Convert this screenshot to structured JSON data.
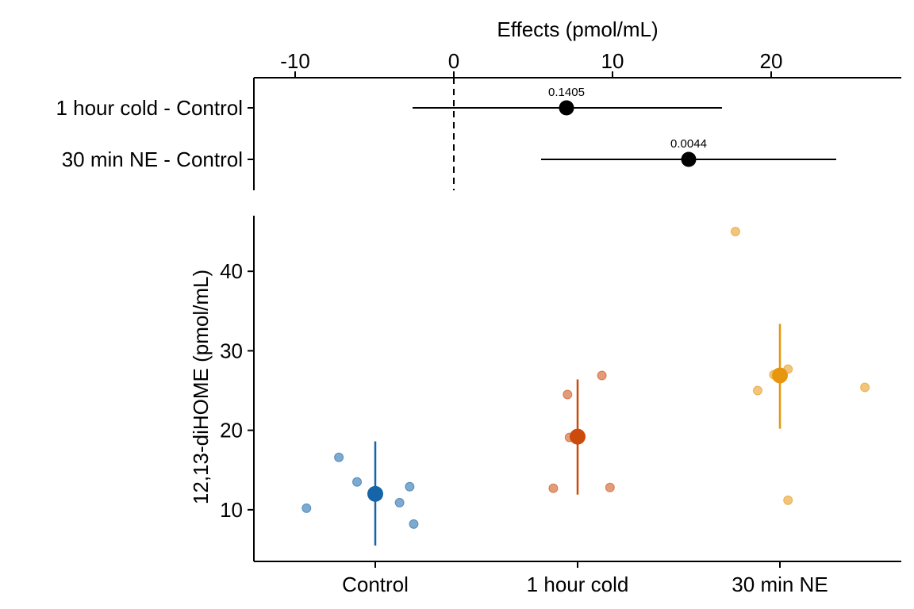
{
  "chart_data": [
    {
      "type": "scatter",
      "panel": "effects",
      "title": "",
      "xlabel": "Effects (pmol/mL)",
      "ylabel": "",
      "xlim": [
        -12.6,
        28.2
      ],
      "xticks": [
        -10,
        0,
        10,
        20
      ],
      "reference_line": 0,
      "rows": [
        {
          "label": "1 hour cold - Control",
          "estimate": 7.1,
          "ci_low": -2.6,
          "ci_high": 16.9,
          "p_label": "0.1405"
        },
        {
          "label": "30 min NE - Control",
          "estimate": 14.8,
          "ci_low": 5.5,
          "ci_high": 24.1,
          "p_label": "0.0044"
        }
      ]
    },
    {
      "type": "scatter",
      "panel": "groups",
      "title": "",
      "xlabel": "",
      "ylabel": "12,13-diHOME (pmol/mL)",
      "ylim": [
        3.5,
        47.0
      ],
      "yticks": [
        10,
        20,
        30,
        40
      ],
      "categories": [
        "Control",
        "1 hour cold",
        "30 min NE"
      ],
      "groups": [
        {
          "category": "Control",
          "color": "#1565a8",
          "mean": 12.0,
          "ci_low": 5.5,
          "ci_high": 18.6,
          "points": [
            {
              "offset": -0.34,
              "y": 10.2
            },
            {
              "offset": -0.18,
              "y": 16.6
            },
            {
              "offset": -0.09,
              "y": 13.5
            },
            {
              "offset": 0.12,
              "y": 10.9
            },
            {
              "offset": 0.17,
              "y": 12.9
            },
            {
              "offset": 0.19,
              "y": 8.2
            }
          ]
        },
        {
          "category": "1 hour cold",
          "color": "#cc4a0c",
          "mean": 19.2,
          "ci_low": 11.9,
          "ci_high": 26.4,
          "points": [
            {
              "offset": -0.12,
              "y": 12.7
            },
            {
              "offset": -0.05,
              "y": 24.5
            },
            {
              "offset": -0.04,
              "y": 19.1
            },
            {
              "offset": 0.12,
              "y": 26.9
            },
            {
              "offset": 0.16,
              "y": 12.8
            }
          ]
        },
        {
          "category": "30 min NE",
          "color": "#e6960f",
          "mean": 26.9,
          "ci_low": 20.2,
          "ci_high": 33.4,
          "points": [
            {
              "offset": -0.22,
              "y": 45.0
            },
            {
              "offset": -0.11,
              "y": 25.0
            },
            {
              "offset": -0.03,
              "y": 27.0
            },
            {
              "offset": 0.04,
              "y": 27.7
            },
            {
              "offset": 0.04,
              "y": 11.2
            },
            {
              "offset": 0.42,
              "y": 25.4
            }
          ]
        }
      ]
    }
  ]
}
